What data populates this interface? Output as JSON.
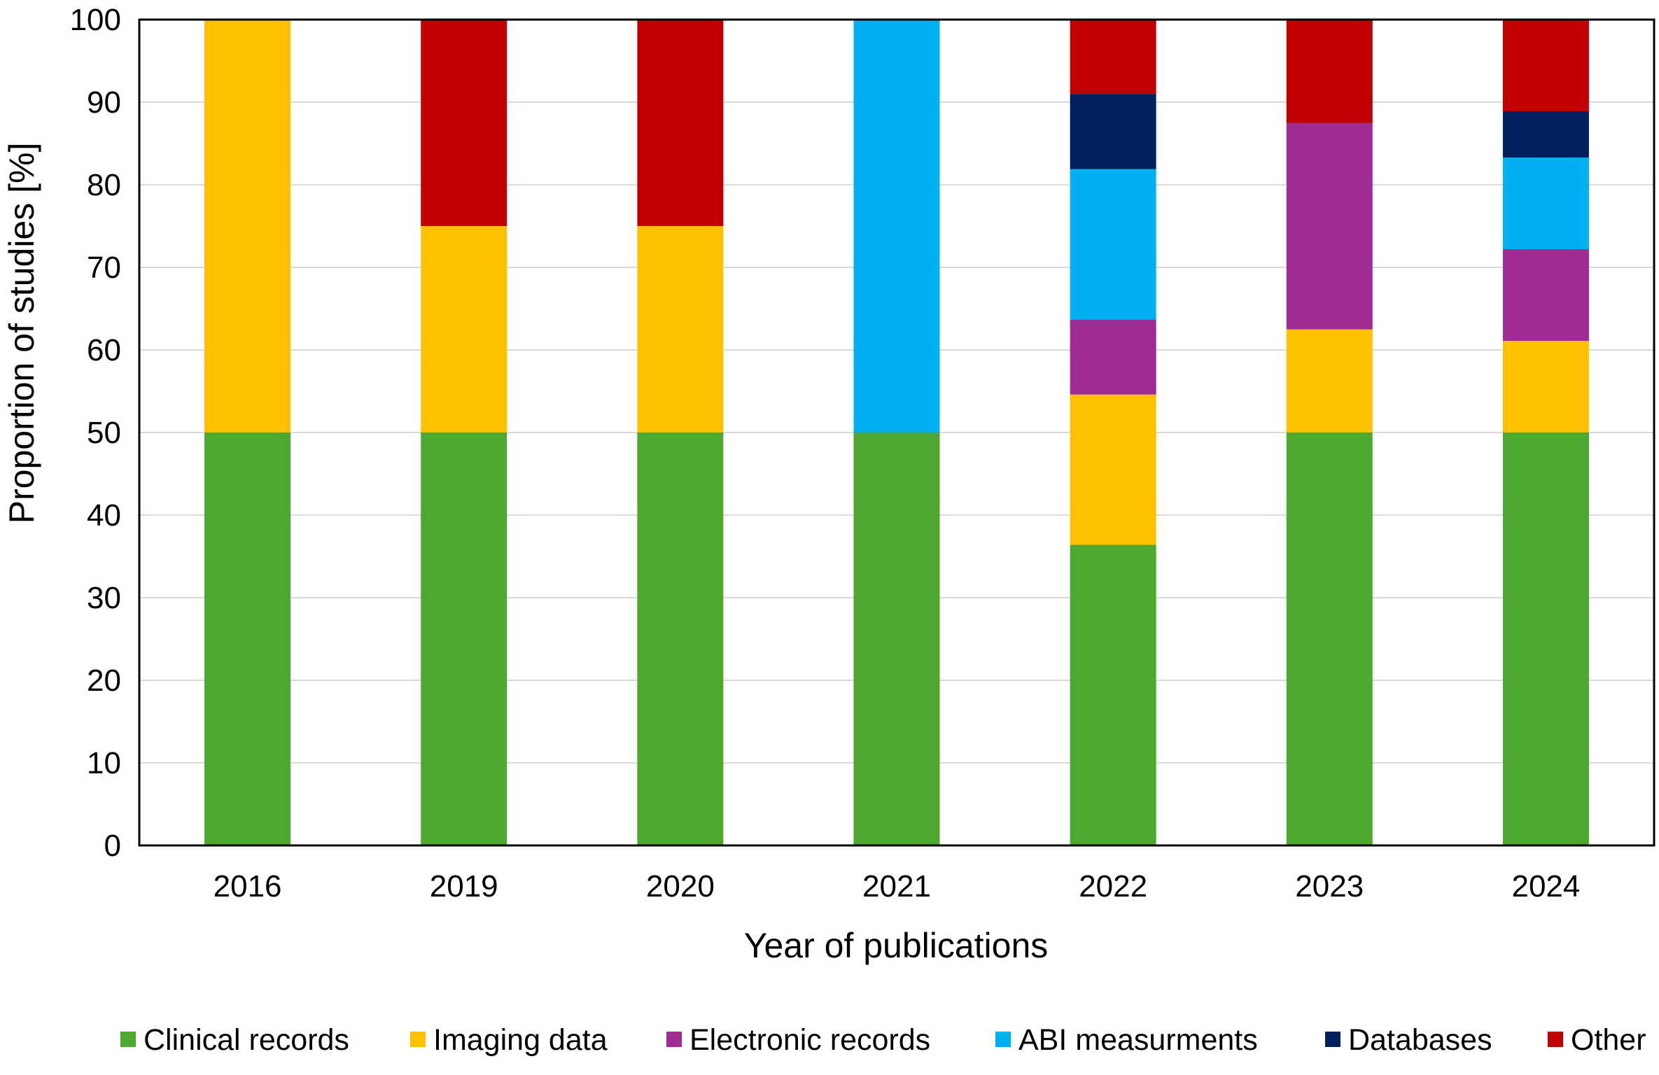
{
  "chart_data": {
    "type": "bar",
    "stacked": true,
    "categories": [
      "2016",
      "2019",
      "2020",
      "2021",
      "2022",
      "2023",
      "2024"
    ],
    "series": [
      {
        "name": "Clinical records",
        "color": "#4ea72e",
        "values": [
          50,
          50,
          50,
          50,
          36.4,
          50,
          50
        ]
      },
      {
        "name": "Imaging data",
        "color": "#ffc000",
        "values": [
          50,
          25,
          25,
          0,
          18.2,
          12.5,
          11.1
        ]
      },
      {
        "name": "Electronic records",
        "color": "#a02b93",
        "values": [
          0,
          0,
          0,
          0,
          9.1,
          25,
          11.1
        ]
      },
      {
        "name": "ABI measurments",
        "color": "#00b0f0",
        "values": [
          0,
          0,
          0,
          50,
          18.2,
          0,
          11.1
        ]
      },
      {
        "name": "Databases",
        "color": "#002060",
        "values": [
          0,
          0,
          0,
          0,
          9.1,
          0,
          5.6
        ]
      },
      {
        "name": "Other",
        "color": "#c00000",
        "values": [
          0,
          25,
          25,
          0,
          9.0,
          12.5,
          11.1
        ]
      }
    ],
    "xlabel": "Year of publications",
    "ylabel": "Proportion of studies [%]",
    "ylim": [
      0,
      100
    ],
    "yticks": [
      0,
      10,
      20,
      30,
      40,
      50,
      60,
      70,
      80,
      90,
      100
    ],
    "grid": true,
    "legend_position": "bottom"
  }
}
